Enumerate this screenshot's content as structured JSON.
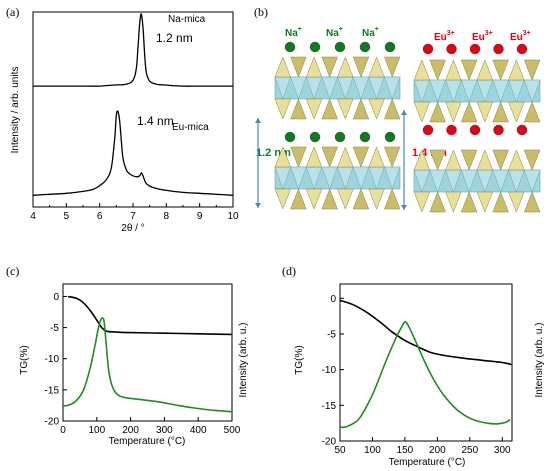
{
  "panels": {
    "a": "(a)",
    "b": "(b)",
    "c": "(c)",
    "d": "(d)"
  },
  "panel_b": {
    "ion_left": "Na",
    "ion_left_charge": "+",
    "ion_right": "Eu",
    "ion_right_charge": "3+",
    "dist_left": "1.2 nm",
    "dist_right": "1.4 nm",
    "colors": {
      "na": "#0f7a1f",
      "eu": "#e60012",
      "tet": "#c9bd6a",
      "oct": "#9fd4dc",
      "arrow": "#4a86c8"
    }
  },
  "chart_data": [
    {
      "id": "a",
      "type": "line",
      "xlabel": "2θ / °",
      "ylabel": "Intensity / arb. units",
      "xlim": [
        4,
        10
      ],
      "xticks": [
        4,
        5,
        6,
        7,
        8,
        9,
        10
      ],
      "grid": false,
      "series": [
        {
          "name": "Na-mica",
          "annotation": "1.2 nm",
          "color": "#000000",
          "x": [
            4.0,
            4.5,
            5.0,
            5.5,
            6.0,
            6.4,
            6.8,
            7.0,
            7.1,
            7.15,
            7.2,
            7.25,
            7.3,
            7.35,
            7.4,
            7.5,
            7.7,
            8.0,
            8.5,
            9.0,
            9.5,
            10.0
          ],
          "y": [
            0.62,
            0.62,
            0.62,
            0.62,
            0.62,
            0.625,
            0.63,
            0.65,
            0.71,
            0.82,
            0.94,
            0.99,
            0.92,
            0.78,
            0.69,
            0.645,
            0.63,
            0.625,
            0.62,
            0.62,
            0.62,
            0.62
          ]
        },
        {
          "name": "Eu-mica",
          "annotation": "1.4 nm",
          "color": "#000000",
          "x": [
            4.0,
            4.5,
            5.0,
            5.5,
            5.8,
            6.0,
            6.2,
            6.35,
            6.45,
            6.5,
            6.55,
            6.6,
            6.65,
            6.7,
            6.8,
            6.9,
            7.0,
            7.1,
            7.2,
            7.25,
            7.3,
            7.4,
            7.6,
            8.0,
            8.5,
            9.0,
            9.5,
            10.0
          ],
          "y": [
            0.06,
            0.065,
            0.07,
            0.08,
            0.09,
            0.11,
            0.14,
            0.2,
            0.35,
            0.47,
            0.49,
            0.44,
            0.34,
            0.25,
            0.19,
            0.17,
            0.16,
            0.155,
            0.16,
            0.175,
            0.16,
            0.12,
            0.1,
            0.085,
            0.075,
            0.07,
            0.065,
            0.06
          ]
        }
      ]
    },
    {
      "id": "c",
      "type": "line",
      "xlabel": "Temperature (°C)",
      "ylabel": "TG(%)",
      "ylabel_right": "Intensity (arb. u.)",
      "xlim": [
        0,
        500
      ],
      "ylim": [
        -20,
        2
      ],
      "xticks": [
        0,
        100,
        200,
        300,
        400,
        500
      ],
      "yticks": [
        0,
        -5,
        -10,
        -15,
        -20
      ],
      "grid": false,
      "series": [
        {
          "color": "#000000",
          "axis": "left",
          "x": [
            15,
            40,
            60,
            80,
            100,
            110,
            120,
            130,
            150,
            200,
            300,
            400,
            500
          ],
          "y": [
            0.0,
            -0.3,
            -1.0,
            -2.2,
            -3.8,
            -4.7,
            -5.3,
            -5.6,
            -5.7,
            -5.8,
            -5.9,
            -6.0,
            -6.1
          ]
        },
        {
          "color": "#1f8c1f",
          "axis": "right",
          "x": [
            0,
            20,
            40,
            60,
            80,
            95,
            105,
            112,
            118,
            122,
            128,
            135,
            145,
            160,
            180,
            220,
            280,
            340,
            400,
            450,
            500
          ],
          "y": [
            -17.6,
            -17.4,
            -16.7,
            -15.1,
            -11.6,
            -7.8,
            -5.0,
            -3.7,
            -3.5,
            -4.2,
            -7.8,
            -11.8,
            -14.3,
            -15.7,
            -16.2,
            -16.5,
            -16.9,
            -17.5,
            -18.0,
            -18.3,
            -18.5
          ]
        }
      ]
    },
    {
      "id": "d",
      "type": "line",
      "xlabel": "Temperature (°C)",
      "ylabel": "TG(%)",
      "ylabel_right": "Intensity (arb. u.)",
      "xlim": [
        50,
        315
      ],
      "ylim": [
        -20,
        2
      ],
      "xticks": [
        50,
        100,
        150,
        200,
        250,
        300
      ],
      "yticks": [
        0,
        -5,
        -10,
        -15,
        -20
      ],
      "grid": false,
      "series": [
        {
          "color": "#000000",
          "axis": "left",
          "x": [
            50,
            70,
            90,
            110,
            130,
            150,
            170,
            190,
            210,
            240,
            270,
            300,
            315
          ],
          "y": [
            -0.3,
            -0.9,
            -1.9,
            -3.2,
            -4.7,
            -5.9,
            -6.8,
            -7.6,
            -8.0,
            -8.4,
            -8.7,
            -9.0,
            -9.3
          ]
        },
        {
          "color": "#1f8c1f",
          "axis": "right",
          "x": [
            50,
            55,
            65,
            80,
            100,
            120,
            135,
            145,
            150,
            155,
            165,
            180,
            195,
            210,
            230,
            250,
            270,
            290,
            305,
            312
          ],
          "y": [
            -18.0,
            -18.1,
            -17.8,
            -16.8,
            -13.5,
            -9.0,
            -5.8,
            -4.0,
            -3.3,
            -3.8,
            -5.7,
            -8.8,
            -11.5,
            -13.6,
            -15.6,
            -16.8,
            -17.4,
            -17.6,
            -17.4,
            -17.0
          ]
        }
      ]
    }
  ]
}
